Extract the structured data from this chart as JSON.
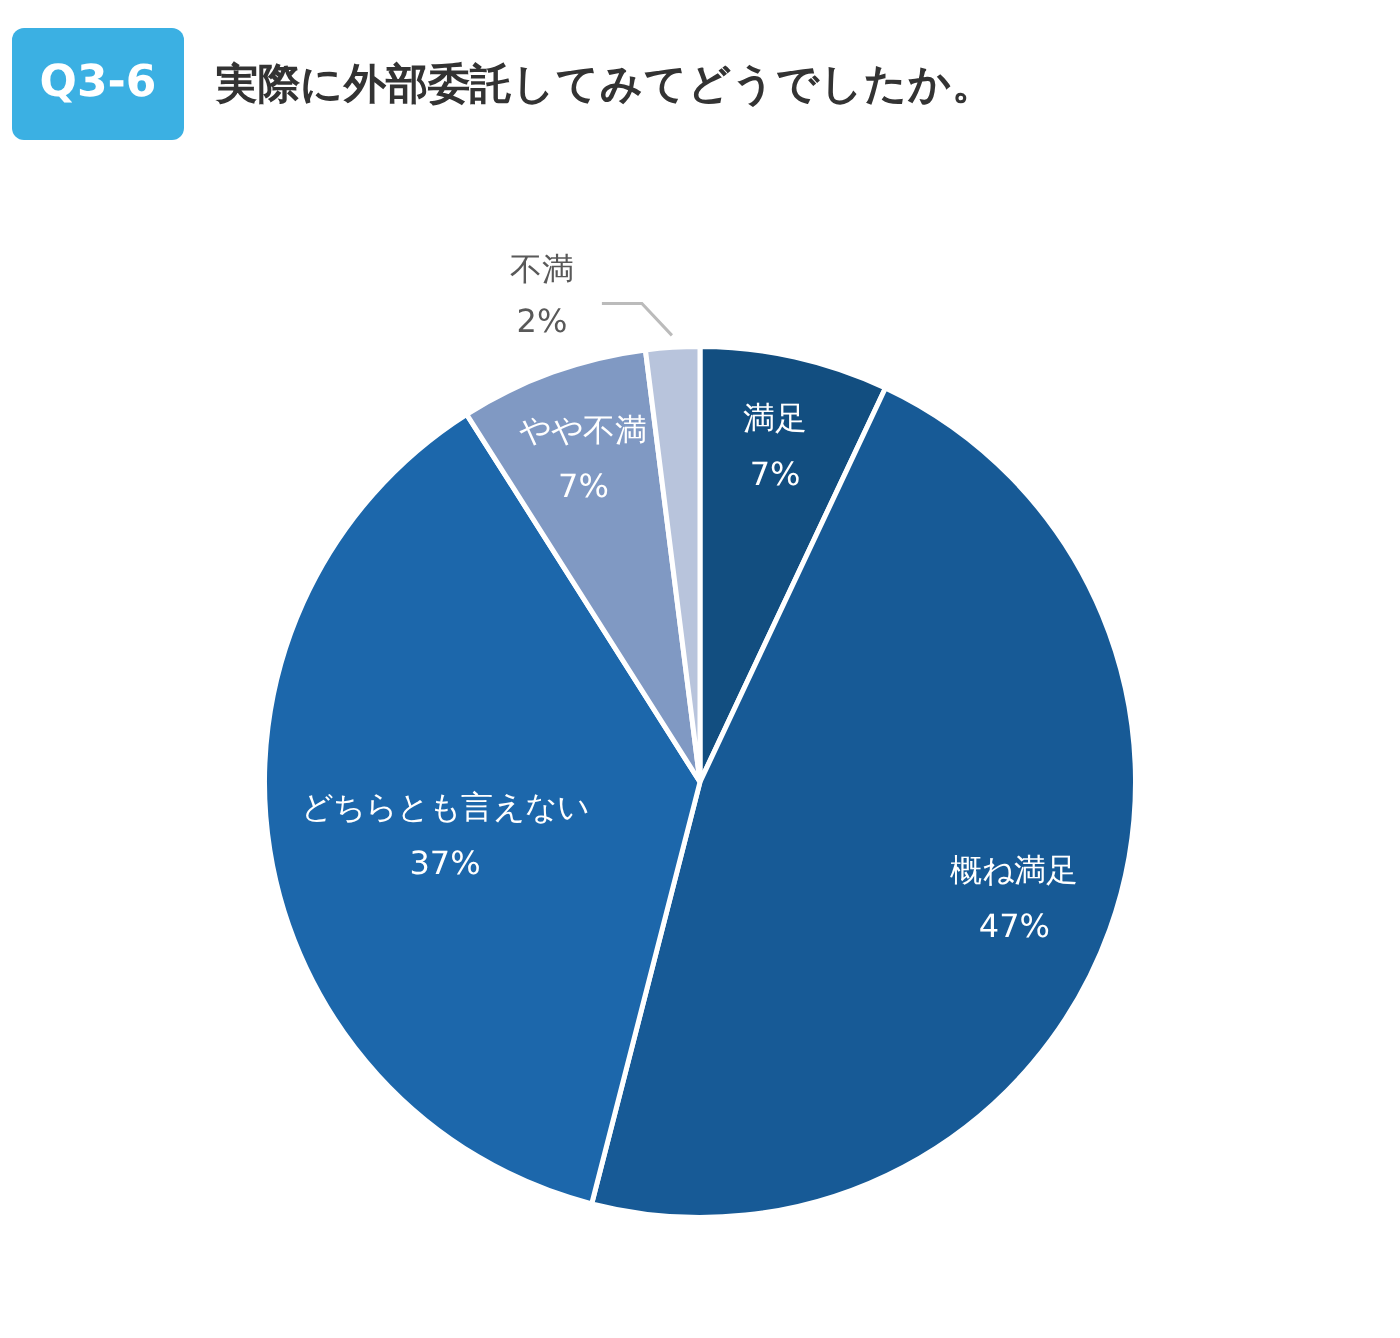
{
  "chart_data": {
    "type": "pie",
    "title": "実際に外部委託してみてどうでしたか。",
    "annotations": [
      "Q3-6"
    ],
    "categories": [
      "満足",
      "概ね満足",
      "どちらとも言えない",
      "やや不満",
      "不満"
    ],
    "values": [
      7,
      47,
      37,
      7,
      2
    ],
    "colors": [
      "#124e80",
      "#175a96",
      "#1c67ab",
      "#8099c3",
      "#b8c4dc"
    ],
    "value_labels": [
      "7%",
      "47%",
      "37%",
      "7%",
      "2%"
    ],
    "legend": false
  }
}
